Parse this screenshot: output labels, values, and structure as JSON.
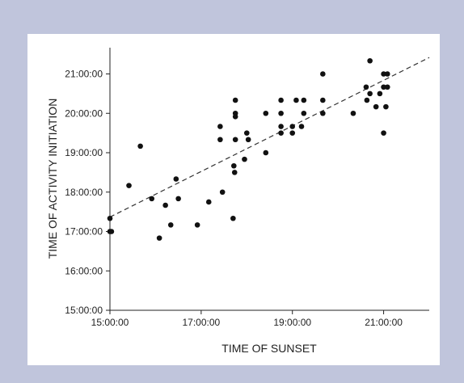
{
  "colors": {
    "background": "#c0c5dc",
    "panel": "#ffffff",
    "ink": "#111111"
  },
  "chart_data": {
    "type": "scatter",
    "title": "",
    "xlabel": "TIME OF SUNSET",
    "ylabel": "TIME OF ACTIVITY INITIATION",
    "xlim": [
      "15:00:00",
      "22:00:00"
    ],
    "ylim": [
      "15:00:00",
      "21:40:00"
    ],
    "x_ticks": [
      "15:00:00",
      "17:00:00",
      "19:00:00",
      "21:00:00"
    ],
    "y_ticks": [
      "15:00:00",
      "16:00:00",
      "17:00:00",
      "18:00:00",
      "19:00:00",
      "20:00:00",
      "21:00:00"
    ],
    "grid": false,
    "legend": "none",
    "trendline": {
      "style": "dashed",
      "from": [
        "15:00:00",
        "17:22:00"
      ],
      "to": [
        "22:00:00",
        "21:25:00"
      ]
    },
    "points": [
      [
        "15:00:00",
        "17:20:00"
      ],
      [
        "15:00:00",
        "17:00:00"
      ],
      [
        "15:02:00",
        "17:00:00"
      ],
      [
        "15:25:00",
        "18:10:00"
      ],
      [
        "15:40:00",
        "19:10:00"
      ],
      [
        "15:55:00",
        "17:50:00"
      ],
      [
        "16:05:00",
        "16:50:00"
      ],
      [
        "16:13:00",
        "17:40:00"
      ],
      [
        "16:20:00",
        "17:10:00"
      ],
      [
        "16:27:00",
        "18:20:00"
      ],
      [
        "16:30:00",
        "17:50:00"
      ],
      [
        "16:55:00",
        "17:10:00"
      ],
      [
        "17:10:00",
        "17:45:00"
      ],
      [
        "17:25:00",
        "19:40:00"
      ],
      [
        "17:25:00",
        "19:20:00"
      ],
      [
        "17:28:00",
        "18:00:00"
      ],
      [
        "17:42:00",
        "17:20:00"
      ],
      [
        "17:43:00",
        "18:40:00"
      ],
      [
        "17:44:00",
        "18:30:00"
      ],
      [
        "17:45:00",
        "19:20:00"
      ],
      [
        "17:45:00",
        "20:00:00"
      ],
      [
        "17:45:00",
        "19:55:00"
      ],
      [
        "17:45:00",
        "20:20:00"
      ],
      [
        "17:57:00",
        "18:50:00"
      ],
      [
        "18:00:00",
        "19:30:00"
      ],
      [
        "18:02:00",
        "19:20:00"
      ],
      [
        "18:25:00",
        "19:00:00"
      ],
      [
        "18:25:00",
        "20:00:00"
      ],
      [
        "18:45:00",
        "20:20:00"
      ],
      [
        "18:45:00",
        "20:00:00"
      ],
      [
        "18:45:00",
        "19:40:00"
      ],
      [
        "18:45:00",
        "19:30:00"
      ],
      [
        "19:00:00",
        "19:30:00"
      ],
      [
        "19:00:00",
        "19:40:00"
      ],
      [
        "19:05:00",
        "20:20:00"
      ],
      [
        "19:12:00",
        "19:40:00"
      ],
      [
        "19:15:00",
        "20:00:00"
      ],
      [
        "19:15:00",
        "20:20:00"
      ],
      [
        "19:40:00",
        "21:00:00"
      ],
      [
        "19:40:00",
        "20:20:00"
      ],
      [
        "19:40:00",
        "20:00:00"
      ],
      [
        "20:20:00",
        "20:00:00"
      ],
      [
        "20:37:00",
        "20:40:00"
      ],
      [
        "20:38:00",
        "20:20:00"
      ],
      [
        "20:42:00",
        "21:20:00"
      ],
      [
        "20:42:00",
        "20:30:00"
      ],
      [
        "20:50:00",
        "20:10:00"
      ],
      [
        "20:55:00",
        "20:30:00"
      ],
      [
        "21:00:00",
        "21:00:00"
      ],
      [
        "21:00:00",
        "20:40:00"
      ],
      [
        "21:00:00",
        "19:30:00"
      ],
      [
        "21:03:00",
        "20:10:00"
      ],
      [
        "21:05:00",
        "21:00:00"
      ],
      [
        "21:05:00",
        "20:40:00"
      ]
    ]
  }
}
